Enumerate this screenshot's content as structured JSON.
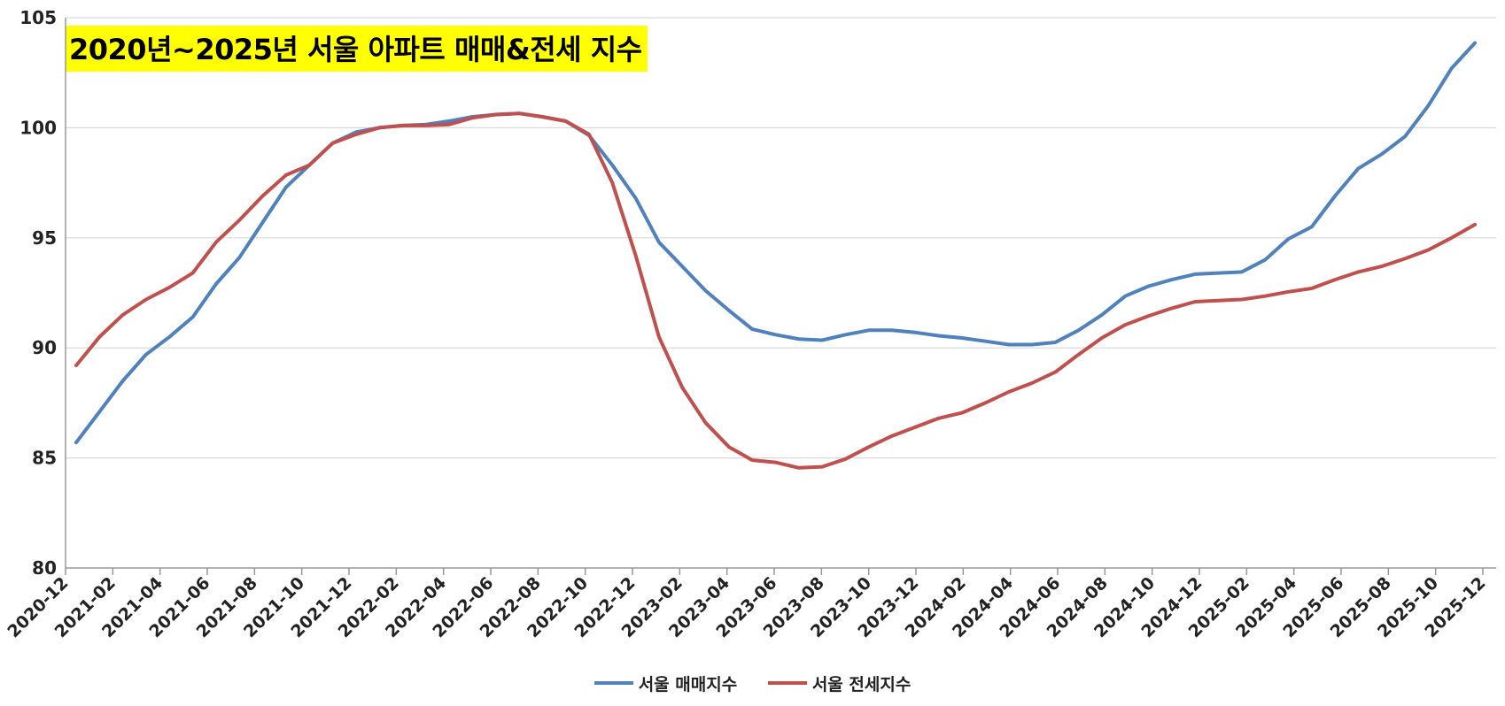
{
  "chart_data": {
    "type": "line",
    "title": "2020년~2025년 서울 아파트 매매&전세 지수",
    "xlabel": "",
    "ylabel": "",
    "ylim": [
      80,
      105
    ],
    "yticks": [
      80,
      85,
      90,
      95,
      100,
      105
    ],
    "grid": true,
    "legend_position": "bottom",
    "x": [
      "2020-12",
      "2021-01",
      "2021-02",
      "2021-03",
      "2021-04",
      "2021-05",
      "2021-06",
      "2021-07",
      "2021-08",
      "2021-09",
      "2021-10",
      "2021-11",
      "2021-12",
      "2022-01",
      "2022-02",
      "2022-03",
      "2022-04",
      "2022-05",
      "2022-06",
      "2022-07",
      "2022-08",
      "2022-09",
      "2022-10",
      "2022-11",
      "2022-12",
      "2023-01",
      "2023-02",
      "2023-03",
      "2023-04",
      "2023-05",
      "2023-06",
      "2023-07",
      "2023-08",
      "2023-09",
      "2023-10",
      "2023-11",
      "2023-12",
      "2024-01",
      "2024-02",
      "2024-03",
      "2024-04",
      "2024-05",
      "2024-06",
      "2024-07",
      "2024-08",
      "2024-09",
      "2024-10",
      "2024-11",
      "2024-12",
      "2025-01",
      "2025-02",
      "2025-03",
      "2025-04",
      "2025-05",
      "2025-06",
      "2025-07",
      "2025-08",
      "2025-09",
      "2025-10",
      "2025-11",
      "2025-12"
    ],
    "xtick_labels": [
      "2020-12",
      "2021-02",
      "2021-04",
      "2021-06",
      "2021-08",
      "2021-10",
      "2021-12",
      "2022-02",
      "2022-04",
      "2022-06",
      "2022-08",
      "2022-10",
      "2022-12",
      "2023-02",
      "2023-04",
      "2023-06",
      "2023-08",
      "2023-10",
      "2023-12",
      "2024-02",
      "2024-04",
      "2024-06",
      "2024-08",
      "2024-10",
      "2024-12",
      "2025-02",
      "2025-04",
      "2025-06",
      "2025-08",
      "2025-10",
      "2025-12"
    ],
    "series": [
      {
        "name": "서울 매매지수",
        "color": "#4f81bd",
        "values": [
          85.7,
          87.1,
          88.5,
          89.7,
          90.5,
          91.4,
          92.9,
          94.1,
          95.7,
          97.3,
          98.3,
          99.3,
          99.8,
          100.0,
          100.1,
          100.15,
          100.3,
          100.5,
          100.6,
          100.65,
          100.5,
          100.3,
          99.65,
          98.3,
          96.8,
          94.8,
          93.7,
          92.6,
          91.7,
          90.85,
          90.6,
          90.4,
          90.35,
          90.6,
          90.8,
          90.8,
          90.7,
          90.55,
          90.45,
          90.3,
          90.15,
          90.15,
          90.25,
          90.8,
          91.5,
          92.35,
          92.8,
          93.1,
          93.35,
          93.4,
          93.45,
          94.0,
          94.95,
          95.5,
          96.9,
          98.15,
          98.8,
          99.6,
          101.0,
          102.7,
          103.85
        ]
      },
      {
        "name": "서울 전세지수",
        "color": "#c0504d",
        "values": [
          89.2,
          90.5,
          91.5,
          92.2,
          92.75,
          93.4,
          94.8,
          95.8,
          96.9,
          97.85,
          98.3,
          99.3,
          99.7,
          100.0,
          100.1,
          100.1,
          100.15,
          100.45,
          100.6,
          100.65,
          100.5,
          100.3,
          99.7,
          97.5,
          94.2,
          90.5,
          88.2,
          86.6,
          85.5,
          84.9,
          84.8,
          84.55,
          84.6,
          84.95,
          85.5,
          86.0,
          86.4,
          86.8,
          87.05,
          87.5,
          88.0,
          88.4,
          88.9,
          89.7,
          90.45,
          91.05,
          91.45,
          91.8,
          92.1,
          92.15,
          92.2,
          92.35,
          92.55,
          92.7,
          93.1,
          93.45,
          93.7,
          94.05,
          94.45,
          95.0,
          95.6
        ]
      }
    ]
  }
}
